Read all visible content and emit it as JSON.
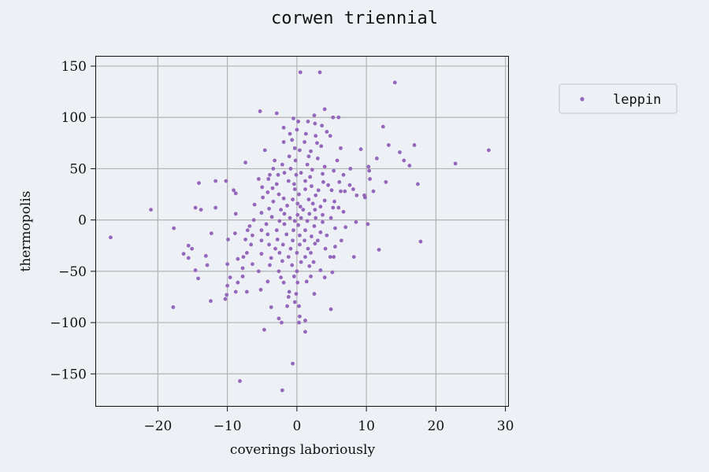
{
  "chart_data": {
    "type": "scatter",
    "title": "corwen triennial",
    "xlabel": "coverings laboriously",
    "ylabel": "thermopolis",
    "xlim": [
      -29,
      30.5
    ],
    "ylim": [
      -182,
      160
    ],
    "xticks": [
      -20,
      -10,
      0,
      10,
      20,
      30
    ],
    "yticks": [
      -150,
      -100,
      -50,
      0,
      50,
      100,
      150
    ],
    "xtick_labels": [
      "−20",
      "−10",
      "0",
      "10",
      "20",
      "30"
    ],
    "ytick_labels": [
      "−150",
      "−100",
      "−50",
      "0",
      "50",
      "100",
      "150"
    ],
    "grid": true,
    "legend": {
      "position": "outside-right-top",
      "entries": [
        "leppin"
      ]
    },
    "series": [
      {
        "name": "leppin",
        "color": "#9467bd",
        "points": [
          [
            0.5,
            144
          ],
          [
            3.3,
            144
          ],
          [
            14.1,
            134
          ],
          [
            4,
            108
          ],
          [
            -5.3,
            106
          ],
          [
            -2.9,
            104
          ],
          [
            2.5,
            102
          ],
          [
            5.2,
            100
          ],
          [
            6,
            100
          ],
          [
            -0.5,
            99
          ],
          [
            0.2,
            96
          ],
          [
            1.6,
            96
          ],
          [
            2.6,
            94
          ],
          [
            3.6,
            92
          ],
          [
            -1.9,
            90
          ],
          [
            0,
            88
          ],
          [
            12.4,
            91
          ],
          [
            4.3,
            86
          ],
          [
            -1,
            84
          ],
          [
            1.3,
            84
          ],
          [
            2.7,
            82
          ],
          [
            4.8,
            82
          ],
          [
            -0.7,
            78
          ],
          [
            -1.9,
            76
          ],
          [
            1.1,
            76
          ],
          [
            2.9,
            75
          ],
          [
            3.5,
            72
          ],
          [
            13.2,
            73
          ],
          [
            16.9,
            73
          ],
          [
            -0.3,
            70
          ],
          [
            -4.6,
            68
          ],
          [
            0.4,
            68
          ],
          [
            2,
            67
          ],
          [
            6.3,
            70
          ],
          [
            9.2,
            69
          ],
          [
            14.8,
            66
          ],
          [
            27.6,
            68
          ],
          [
            -1.1,
            62
          ],
          [
            1.7,
            62
          ],
          [
            3,
            60
          ],
          [
            -3.2,
            58
          ],
          [
            -0.2,
            58
          ],
          [
            5.8,
            58
          ],
          [
            11.5,
            60
          ],
          [
            15.4,
            58
          ],
          [
            -7.4,
            56
          ],
          [
            -2.1,
            54
          ],
          [
            1.5,
            54
          ],
          [
            4,
            52
          ],
          [
            10.3,
            52
          ],
          [
            16.2,
            53
          ],
          [
            22.8,
            55
          ],
          [
            -3.4,
            50
          ],
          [
            -0.9,
            50
          ],
          [
            2.2,
            49
          ],
          [
            5.3,
            48
          ],
          [
            7.7,
            50
          ],
          [
            -1.8,
            46
          ],
          [
            0.6,
            46
          ],
          [
            3.7,
            45
          ],
          [
            10.4,
            48
          ],
          [
            -3.9,
            44
          ],
          [
            -2.7,
            44
          ],
          [
            -0.1,
            44
          ],
          [
            1.9,
            42
          ],
          [
            6.7,
            44
          ],
          [
            10.5,
            40
          ],
          [
            -5.5,
            40
          ],
          [
            -4.1,
            40
          ],
          [
            -1.2,
            38
          ],
          [
            1.2,
            38
          ],
          [
            3.8,
            37
          ],
          [
            6.1,
            37
          ],
          [
            12.8,
            37
          ],
          [
            17.4,
            35
          ],
          [
            -10.2,
            38
          ],
          [
            -11.7,
            38
          ],
          [
            -14.1,
            36
          ],
          [
            -2.9,
            35
          ],
          [
            -0.4,
            35
          ],
          [
            2.1,
            33
          ],
          [
            4.5,
            34
          ],
          [
            7.6,
            34
          ],
          [
            -5,
            32
          ],
          [
            -3.5,
            31
          ],
          [
            -0.3,
            30
          ],
          [
            1.2,
            30
          ],
          [
            3.1,
            29
          ],
          [
            5,
            29
          ],
          [
            8.1,
            30
          ],
          [
            -9.1,
            29
          ],
          [
            -8.8,
            26
          ],
          [
            -4.2,
            27
          ],
          [
            -2.6,
            25
          ],
          [
            0.3,
            25
          ],
          [
            2.7,
            24
          ],
          [
            6.3,
            28
          ],
          [
            6.9,
            28
          ],
          [
            11,
            28
          ],
          [
            -4.9,
            22
          ],
          [
            -1.9,
            21
          ],
          [
            -0.6,
            20
          ],
          [
            1.7,
            20
          ],
          [
            4,
            19
          ],
          [
            8.6,
            24
          ],
          [
            9.7,
            24
          ],
          [
            -3.4,
            18
          ],
          [
            0.1,
            16
          ],
          [
            2.3,
            16
          ],
          [
            5.4,
            18
          ],
          [
            -6.1,
            15
          ],
          [
            -1.4,
            14
          ],
          [
            0.5,
            13
          ],
          [
            3.4,
            13
          ],
          [
            9.8,
            22
          ],
          [
            -21,
            10
          ],
          [
            -14.6,
            12
          ],
          [
            -13.8,
            10
          ],
          [
            -11.7,
            12
          ],
          [
            -4,
            11
          ],
          [
            -2.3,
            10
          ],
          [
            0.9,
            10
          ],
          [
            2.6,
            10
          ],
          [
            6,
            12
          ],
          [
            6.7,
            8
          ],
          [
            -8.8,
            6
          ],
          [
            -5.1,
            7
          ],
          [
            -1.8,
            6
          ],
          [
            0.1,
            5
          ],
          [
            1.8,
            6
          ],
          [
            3.7,
            5
          ],
          [
            5.2,
            12
          ],
          [
            -3.6,
            3
          ],
          [
            -1,
            2
          ],
          [
            0.6,
            2
          ],
          [
            2.7,
            2
          ],
          [
            4.9,
            2
          ],
          [
            -6.2,
            0
          ],
          [
            -2.5,
            -1
          ],
          [
            -0.3,
            -1
          ],
          [
            1.5,
            -1
          ],
          [
            3.7,
            -2
          ],
          [
            8.5,
            -2
          ],
          [
            10.2,
            -4
          ],
          [
            -17.7,
            -8
          ],
          [
            -6.8,
            -6
          ],
          [
            -4.4,
            -4
          ],
          [
            -1.8,
            -4
          ],
          [
            0.2,
            -5
          ],
          [
            2.5,
            -6
          ],
          [
            5.5,
            -8
          ],
          [
            7,
            -7
          ],
          [
            -7.1,
            -10
          ],
          [
            -5.1,
            -10
          ],
          [
            -2.9,
            -10
          ],
          [
            -0.5,
            -10
          ],
          [
            1.2,
            -10
          ],
          [
            3.4,
            -12
          ],
          [
            -26.8,
            -17
          ],
          [
            -12.3,
            -13
          ],
          [
            -8.9,
            -13
          ],
          [
            -6.4,
            -15
          ],
          [
            -4.2,
            -14
          ],
          [
            -1.5,
            -14
          ],
          [
            0.4,
            -15
          ],
          [
            2.1,
            -16
          ],
          [
            4.3,
            -15
          ],
          [
            -9.9,
            -19
          ],
          [
            -7.4,
            -19
          ],
          [
            -5.1,
            -20
          ],
          [
            -2.8,
            -19
          ],
          [
            -0.6,
            -20
          ],
          [
            1.1,
            -20
          ],
          [
            3,
            -20
          ],
          [
            6.4,
            -20
          ],
          [
            -15.6,
            -25
          ],
          [
            -15.1,
            -28
          ],
          [
            -6.6,
            -24
          ],
          [
            -4,
            -24
          ],
          [
            -2,
            -24
          ],
          [
            0.4,
            -24
          ],
          [
            2.6,
            -23
          ],
          [
            5.5,
            -26
          ],
          [
            17.8,
            -21
          ],
          [
            -3.1,
            -28
          ],
          [
            -0.9,
            -28
          ],
          [
            1.6,
            -28
          ],
          [
            4.1,
            -28
          ],
          [
            11.8,
            -29
          ],
          [
            -16.3,
            -33
          ],
          [
            -15.6,
            -37
          ],
          [
            -7.2,
            -32
          ],
          [
            -5.1,
            -33
          ],
          [
            -2.5,
            -32
          ],
          [
            0,
            -32
          ],
          [
            2,
            -32
          ],
          [
            -13.1,
            -35
          ],
          [
            -7.7,
            -36
          ],
          [
            -3.7,
            -37
          ],
          [
            -1.2,
            -36
          ],
          [
            1.2,
            -36
          ],
          [
            4.8,
            -36
          ],
          [
            5.3,
            -36
          ],
          [
            -8.5,
            -38
          ],
          [
            -2.1,
            -40
          ],
          [
            0.6,
            -41
          ],
          [
            2.4,
            -41
          ],
          [
            8.2,
            -36
          ],
          [
            -12.9,
            -44
          ],
          [
            -10,
            -43
          ],
          [
            -6.4,
            -43
          ],
          [
            -3.9,
            -44
          ],
          [
            -0.7,
            -44
          ],
          [
            1.8,
            -45
          ],
          [
            -14.6,
            -49
          ],
          [
            -7.8,
            -47
          ],
          [
            -5.5,
            -50
          ],
          [
            -2.6,
            -50
          ],
          [
            0,
            -50
          ],
          [
            3.4,
            -49
          ],
          [
            5.1,
            -51
          ],
          [
            -14.2,
            -57
          ],
          [
            -9.6,
            -56
          ],
          [
            -7.8,
            -55
          ],
          [
            -2.3,
            -56
          ],
          [
            -0.4,
            -55
          ],
          [
            2,
            -55
          ],
          [
            4,
            -56
          ],
          [
            -8.5,
            -61
          ],
          [
            -4.2,
            -60
          ],
          [
            -1.9,
            -61
          ],
          [
            0.1,
            -61
          ],
          [
            1.4,
            -60
          ],
          [
            -10,
            -64
          ],
          [
            -8.8,
            -70
          ],
          [
            -7.2,
            -70
          ],
          [
            -5.2,
            -68
          ],
          [
            -1.1,
            -70
          ],
          [
            -0.1,
            -72
          ],
          [
            2.5,
            -72
          ],
          [
            -10.1,
            -73
          ],
          [
            -1.2,
            -75
          ],
          [
            -12.4,
            -79
          ],
          [
            -10.3,
            -77
          ],
          [
            -0.3,
            -80
          ],
          [
            -17.8,
            -85
          ],
          [
            -3.7,
            -85
          ],
          [
            -1.4,
            -84
          ],
          [
            0.3,
            -84
          ],
          [
            4.9,
            -87
          ],
          [
            -2.6,
            -96
          ],
          [
            -2.2,
            -100
          ],
          [
            0.3,
            -100
          ],
          [
            0.4,
            -94
          ],
          [
            1.2,
            -98
          ],
          [
            -4.7,
            -107
          ],
          [
            1.2,
            -109
          ],
          [
            -0.6,
            -140
          ],
          [
            -8.2,
            -157
          ],
          [
            -2.1,
            -166
          ]
        ]
      }
    ]
  }
}
